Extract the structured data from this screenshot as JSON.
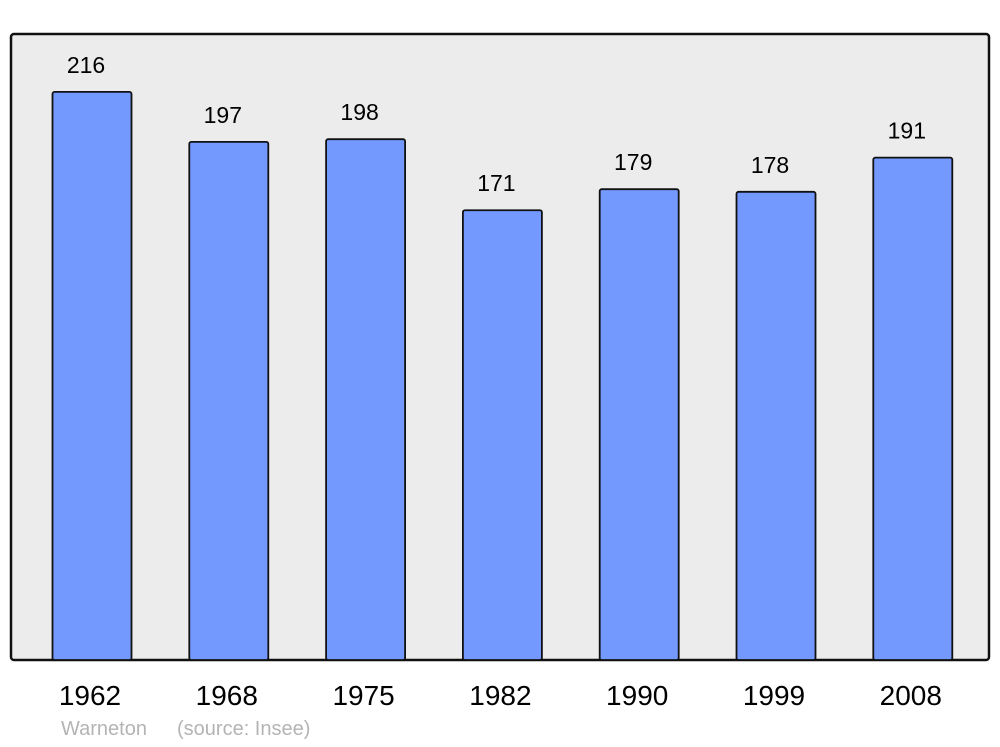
{
  "chart_data": {
    "type": "bar",
    "categories": [
      "1962",
      "1968",
      "1975",
      "1982",
      "1990",
      "1999",
      "2008"
    ],
    "values": [
      216,
      197,
      198,
      171,
      179,
      178,
      191
    ],
    "title": "",
    "xlabel": "",
    "ylabel": "",
    "ylim": [
      0,
      238
    ],
    "grid": false,
    "data_labels": true,
    "colors": {
      "bar": "#7399ff",
      "background": "#ececec",
      "frame": "#111111"
    }
  },
  "footer": {
    "place": "Warneton",
    "source": "(source: Insee)"
  }
}
